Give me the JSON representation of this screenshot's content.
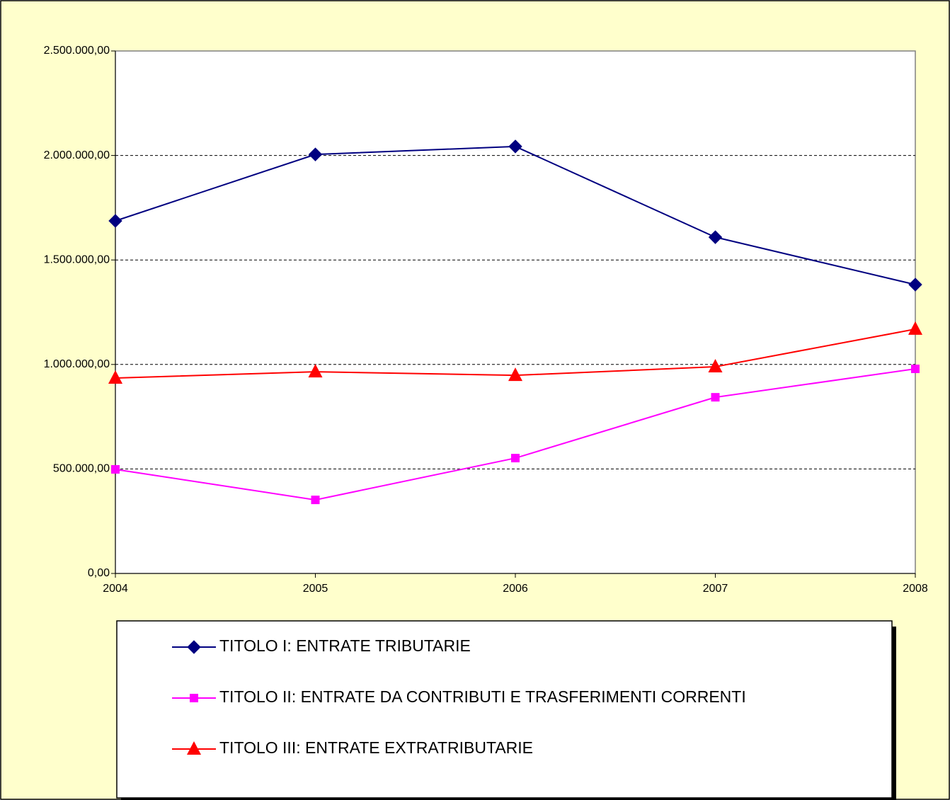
{
  "chart_data": {
    "type": "line",
    "categories": [
      "2004",
      "2005",
      "2006",
      "2007",
      "2008"
    ],
    "series": [
      {
        "name": "TITOLO I: ENTRATE TRIBUTARIE",
        "color": "#000080",
        "marker": "diamond",
        "values": [
          1687000,
          2005000,
          2043000,
          1609000,
          1382000
        ]
      },
      {
        "name": "TITOLO II: ENTRATE DA CONTRIBUTI E TRASFERIMENTI CORRENTI",
        "color": "#ff00ff",
        "marker": "square",
        "values": [
          498000,
          352000,
          552000,
          843000,
          979000
        ]
      },
      {
        "name": "TITOLO III: ENTRATE EXTRATRIBUTARIE",
        "color": "#ff0000",
        "marker": "triangle",
        "values": [
          935000,
          965000,
          948000,
          989000,
          1169000
        ]
      }
    ],
    "ylim": [
      0,
      2500000
    ],
    "yticks": [
      {
        "value": 0,
        "label": "0,00"
      },
      {
        "value": 500000,
        "label": "500.000,00"
      },
      {
        "value": 1000000,
        "label": "1.000.000,00"
      },
      {
        "value": 1500000,
        "label": "1.500.000,00"
      },
      {
        "value": 2000000,
        "label": "2.000.000,00"
      },
      {
        "value": 2500000,
        "label": "2.500.000,00"
      }
    ],
    "grid": true,
    "legend": "bottom"
  }
}
